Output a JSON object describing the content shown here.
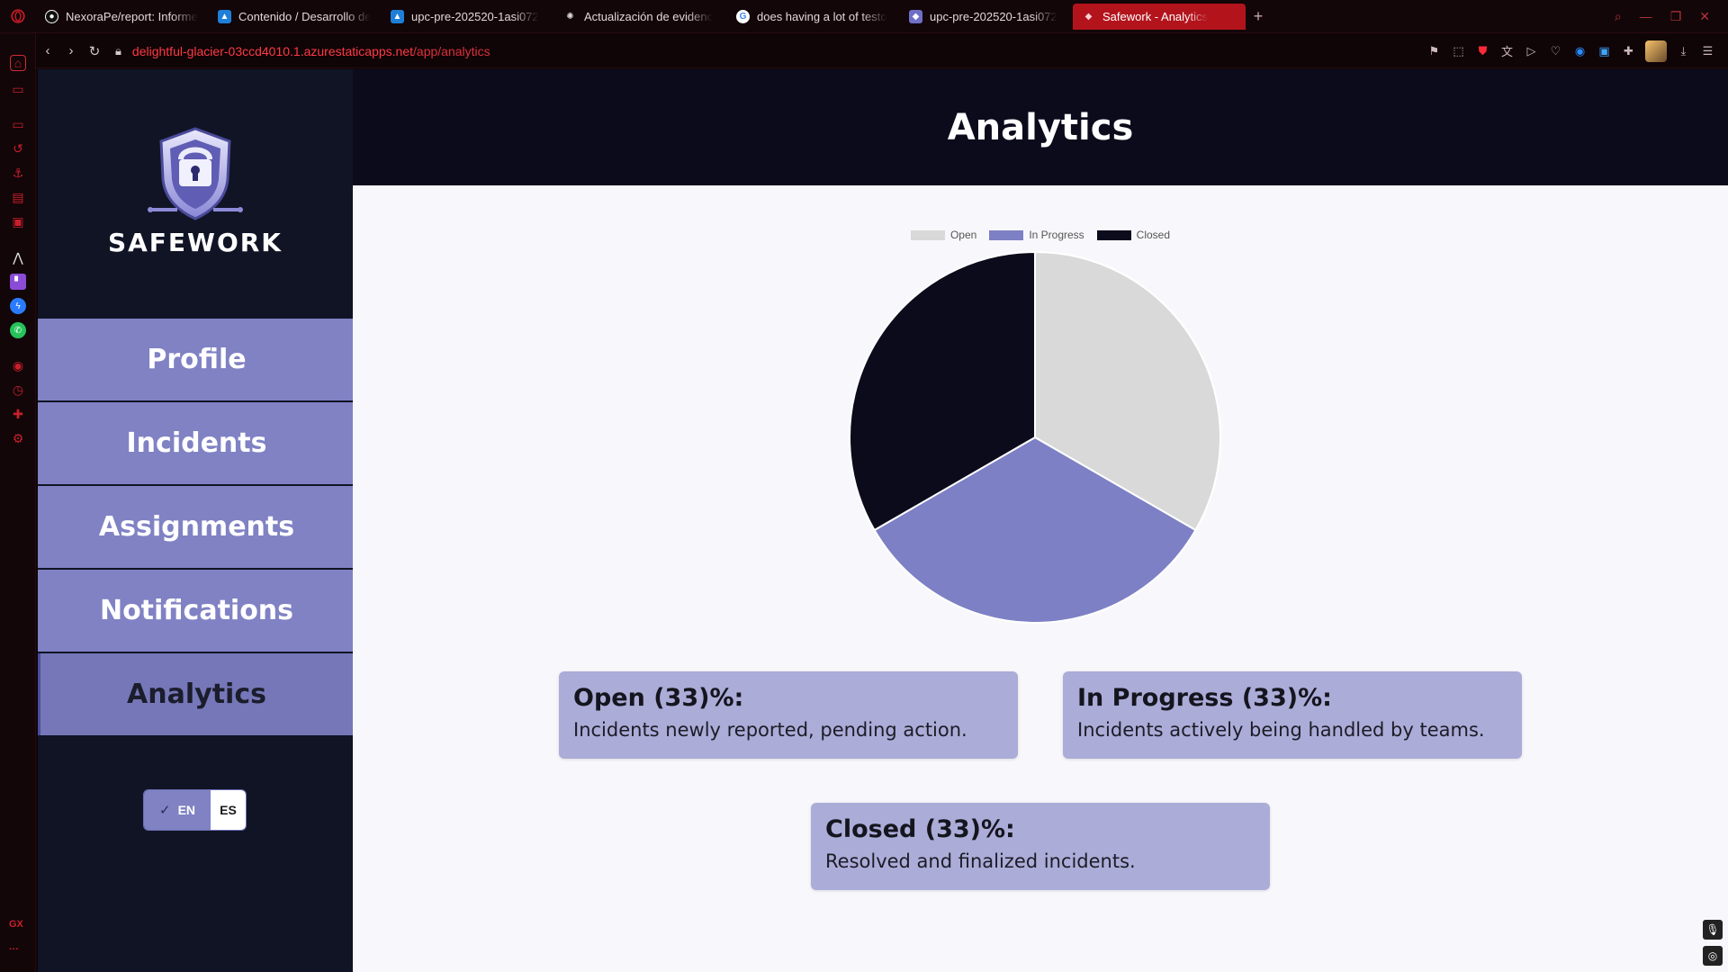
{
  "browser": {
    "tabs": [
      {
        "label": "NexoraPe/report: Informe",
        "favicon": "github-icon",
        "color": "#111111"
      },
      {
        "label": "Contenido / Desarrollo de",
        "favicon": "azure-icon",
        "color": "#1e7fd8"
      },
      {
        "label": "upc-pre-202520-1asi072",
        "favicon": "azure-icon",
        "color": "#1e7fd8"
      },
      {
        "label": "Actualización de evidenc",
        "favicon": "openai-icon",
        "color": "#444444"
      },
      {
        "label": "does having a lot of testo",
        "favicon": "google-icon",
        "color": "#ffffff"
      },
      {
        "label": "upc-pre-202520-1asi072",
        "favicon": "safework-icon",
        "color": "#6f6fc7"
      },
      {
        "label": "Safework - Analytics",
        "favicon": "safework-icon",
        "color": "#6f6fc7",
        "active": true
      }
    ],
    "url_domain": "delightful-glacier-03ccd4010.1.azurestaticapps.net",
    "url_path": "/app/analytics",
    "accent_color": "#b3141c"
  },
  "brand": {
    "name": "SAFEWORK"
  },
  "sidebar": {
    "items": [
      {
        "label": "Profile"
      },
      {
        "label": "Incidents"
      },
      {
        "label": "Assignments"
      },
      {
        "label": "Notifications"
      },
      {
        "label": "Analytics",
        "active": true
      }
    ],
    "language": {
      "en": "EN",
      "es": "ES",
      "selected": "EN"
    }
  },
  "main": {
    "title": "Analytics"
  },
  "chart_data": {
    "type": "pie",
    "categories": [
      "Open",
      "In Progress",
      "Closed"
    ],
    "values": [
      33.3,
      33.3,
      33.3
    ],
    "colors": [
      "#d9d9d9",
      "#7d80c4",
      "#0c0b1c"
    ],
    "legend": "top"
  },
  "cards": [
    {
      "title": "Open (33)%:",
      "desc": "Incidents newly reported, pending action."
    },
    {
      "title": "In Progress (33)%:",
      "desc": "Incidents actively being handled by teams."
    },
    {
      "title": "Closed (33)%:",
      "desc": "Resolved and finalized incidents."
    }
  ]
}
